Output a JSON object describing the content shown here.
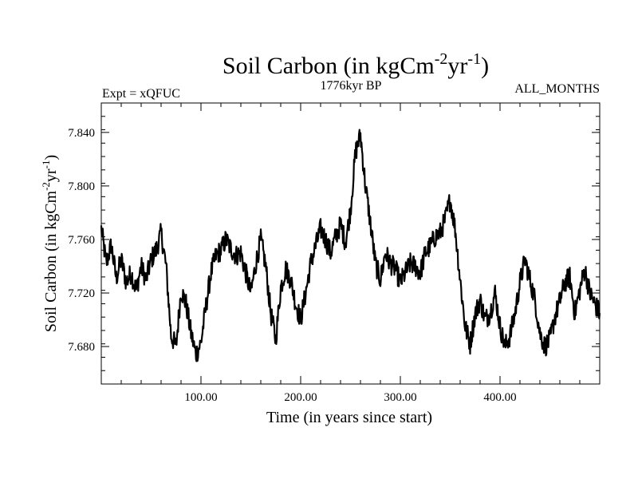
{
  "chart_data": {
    "type": "line",
    "title_main": "Soil Carbon (in kgCm",
    "title_sup1": "-2",
    "title_mid": "yr",
    "title_sup2": "-1",
    "title_end": ")",
    "left_label": "Expt = xQFUC",
    "center_label": "1776kyr BP",
    "right_label": "ALL_MONTHS",
    "xlabel": "Time (in years since start)",
    "ylabel_main": "Soil Carbon (in kgCm",
    "ylabel_sup1": "-2",
    "ylabel_mid": "yr",
    "ylabel_sup2": "-1",
    "ylabel_end": ")",
    "xlim": [
      0,
      500
    ],
    "ylim": [
      7.652,
      7.862
    ],
    "x_ticks": [
      100,
      200,
      300,
      400
    ],
    "x_tick_labels": [
      "100.00",
      "200.00",
      "300.00",
      "400.00"
    ],
    "y_ticks": [
      7.68,
      7.72,
      7.76,
      7.8,
      7.84
    ],
    "y_tick_labels": [
      "7.680",
      "7.720",
      "7.760",
      "7.800",
      "7.840"
    ],
    "grid": false,
    "series": [
      {
        "color": "#000000",
        "x": [
          0,
          5,
          10,
          15,
          20,
          25,
          30,
          35,
          40,
          45,
          50,
          55,
          60,
          65,
          70,
          75,
          80,
          85,
          90,
          95,
          100,
          105,
          110,
          115,
          120,
          125,
          130,
          135,
          140,
          145,
          150,
          155,
          160,
          165,
          170,
          175,
          180,
          185,
          190,
          195,
          200,
          205,
          210,
          215,
          220,
          225,
          230,
          235,
          240,
          245,
          250,
          255,
          260,
          265,
          270,
          275,
          280,
          285,
          290,
          295,
          300,
          305,
          310,
          315,
          320,
          325,
          330,
          335,
          340,
          345,
          350,
          355,
          360,
          365,
          370,
          375,
          380,
          385,
          390,
          395,
          400,
          405,
          410,
          415,
          420,
          425,
          430,
          435,
          440,
          445,
          450,
          455,
          460,
          465,
          470,
          475,
          480,
          485,
          490,
          495,
          500
        ],
        "y": [
          7.768,
          7.742,
          7.756,
          7.731,
          7.745,
          7.728,
          7.735,
          7.722,
          7.74,
          7.73,
          7.745,
          7.752,
          7.765,
          7.74,
          7.688,
          7.68,
          7.722,
          7.712,
          7.69,
          7.674,
          7.683,
          7.71,
          7.735,
          7.748,
          7.752,
          7.76,
          7.753,
          7.748,
          7.75,
          7.735,
          7.72,
          7.742,
          7.76,
          7.74,
          7.705,
          7.685,
          7.724,
          7.738,
          7.73,
          7.712,
          7.7,
          7.72,
          7.742,
          7.755,
          7.768,
          7.76,
          7.75,
          7.762,
          7.771,
          7.758,
          7.782,
          7.825,
          7.838,
          7.8,
          7.772,
          7.742,
          7.73,
          7.75,
          7.742,
          7.738,
          7.728,
          7.735,
          7.742,
          7.74,
          7.735,
          7.75,
          7.755,
          7.762,
          7.765,
          7.775,
          7.79,
          7.768,
          7.73,
          7.695,
          7.682,
          7.704,
          7.715,
          7.7,
          7.705,
          7.72,
          7.695,
          7.68,
          7.688,
          7.705,
          7.728,
          7.745,
          7.73,
          7.715,
          7.69,
          7.68,
          7.685,
          7.702,
          7.714,
          7.728,
          7.732,
          7.705,
          7.722,
          7.738,
          7.72,
          7.712,
          7.705
        ]
      }
    ]
  }
}
